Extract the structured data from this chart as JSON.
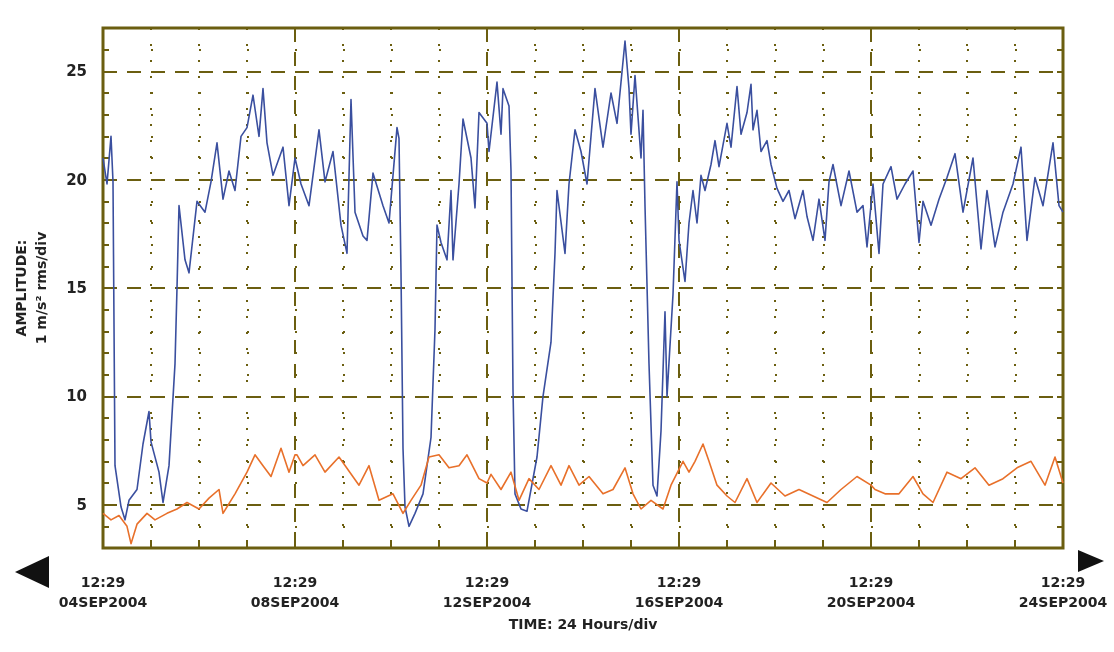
{
  "chart_data": {
    "type": "line",
    "xlabel": "TIME: 24 Hours/div",
    "ylabel": "AMPLITUDE:\n1 m/s² rms/div",
    "xlim": [
      "2004-09-04T12:29",
      "2004-09-24T12:29"
    ],
    "ylim": [
      3,
      27
    ],
    "xticks": [
      {
        "value": "2004-09-04T12:29",
        "label": "12:29\n04SEP2004"
      },
      {
        "value": "2004-09-05T12:29",
        "label": null
      },
      {
        "value": "2004-09-06T12:29",
        "label": null
      },
      {
        "value": "2004-09-07T12:29",
        "label": null
      },
      {
        "value": "2004-09-08T12:29",
        "label": "12:29\n08SEP2004"
      },
      {
        "value": "2004-09-09T12:29",
        "label": null
      },
      {
        "value": "2004-09-10T12:29",
        "label": null
      },
      {
        "value": "2004-09-11T12:29",
        "label": null
      },
      {
        "value": "2004-09-12T12:29",
        "label": "12:29\n12SEP2004"
      },
      {
        "value": "2004-09-13T12:29",
        "label": null
      },
      {
        "value": "2004-09-14T12:29",
        "label": null
      },
      {
        "value": "2004-09-15T12:29",
        "label": null
      },
      {
        "value": "2004-09-16T12:29",
        "label": "12:29\n16SEP2004"
      },
      {
        "value": "2004-09-17T12:29",
        "label": null
      },
      {
        "value": "2004-09-18T12:29",
        "label": null
      },
      {
        "value": "2004-09-19T12:29",
        "label": null
      },
      {
        "value": "2004-09-20T12:29",
        "label": "12:29\n20SEP2004"
      },
      {
        "value": "2004-09-21T12:29",
        "label": null
      },
      {
        "value": "2004-09-22T12:29",
        "label": null
      },
      {
        "value": "2004-09-23T12:29",
        "label": null
      },
      {
        "value": "2004-09-24T12:29",
        "label": "12:29\n24SEP2004"
      }
    ],
    "yticks": [
      {
        "value": 4,
        "label": null
      },
      5,
      {
        "value": 6,
        "label": null
      },
      {
        "value": 7,
        "label": null
      },
      {
        "value": 8,
        "label": null
      },
      {
        "value": 9,
        "label": null
      },
      10,
      {
        "value": 11,
        "label": null
      },
      {
        "value": 12,
        "label": null
      },
      {
        "value": 13,
        "label": null
      },
      {
        "value": 14,
        "label": null
      },
      15,
      {
        "value": 16,
        "label": null
      },
      {
        "value": 17,
        "label": null
      },
      {
        "value": 18,
        "label": null
      },
      {
        "value": 19,
        "label": null
      },
      20,
      {
        "value": 21,
        "label": null
      },
      {
        "value": 22,
        "label": null
      },
      {
        "value": 23,
        "label": null
      },
      {
        "value": 24,
        "label": null
      },
      25,
      {
        "value": 26,
        "label": null
      }
    ],
    "grid": true,
    "marker": "none",
    "line_style": "solid",
    "series": [
      {
        "color": "#3a4f9f",
        "x": [
          "2004-09-04T12:29",
          "2004-09-04T14:29",
          "2004-09-04T16:29",
          "2004-09-04T17:29",
          "2004-09-04T18:29",
          "2004-09-04T21:29",
          "2004-09-04T23:29",
          "2004-09-05T01:29",
          "2004-09-05T05:29",
          "2004-09-05T08:29",
          "2004-09-05T11:29",
          "2004-09-05T12:29",
          "2004-09-05T16:29",
          "2004-09-05T18:29",
          "2004-09-05T21:29",
          "2004-09-06T00:29",
          "2004-09-06T01:29",
          "2004-09-06T02:29",
          "2004-09-06T05:29",
          "2004-09-06T07:29",
          "2004-09-06T11:29",
          "2004-09-06T15:29",
          "2004-09-06T18:29",
          "2004-09-06T21:29",
          "2004-09-07T00:29",
          "2004-09-07T03:29",
          "2004-09-07T06:29",
          "2004-09-07T09:29",
          "2004-09-07T12:29",
          "2004-09-07T15:29",
          "2004-09-07T18:29",
          "2004-09-07T20:29",
          "2004-09-07T22:29",
          "2004-09-08T01:29",
          "2004-09-08T06:29",
          "2004-09-08T09:29",
          "2004-09-08T12:29",
          "2004-09-08T15:29",
          "2004-09-08T19:29",
          "2004-09-09T00:29",
          "2004-09-09T03:29",
          "2004-09-09T07:29",
          "2004-09-09T11:29",
          "2004-09-09T14:29",
          "2004-09-09T16:29",
          "2004-09-09T18:29",
          "2004-09-09T22:29",
          "2004-09-10T00:29",
          "2004-09-10T03:29",
          "2004-09-10T08:29",
          "2004-09-10T11:29",
          "2004-09-10T13:29",
          "2004-09-10T15:29",
          "2004-09-10T16:29",
          "2004-09-10T17:29",
          "2004-09-10T18:29",
          "2004-09-10T19:29",
          "2004-09-10T21:29",
          "2004-09-11T00:29",
          "2004-09-11T04:29",
          "2004-09-11T08:29",
          "2004-09-11T10:29",
          "2004-09-11T11:29",
          "2004-09-11T13:29",
          "2004-09-11T16:29",
          "2004-09-11T18:29",
          "2004-09-11T19:29",
          "2004-09-11T22:29",
          "2004-09-12T00:29",
          "2004-09-12T04:29",
          "2004-09-12T06:29",
          "2004-09-12T08:29",
          "2004-09-12T12:29",
          "2004-09-12T13:29",
          "2004-09-12T17:29",
          "2004-09-12T19:29",
          "2004-09-12T20:29",
          "2004-09-12T23:29",
          "2004-09-13T00:29",
          "2004-09-13T01:29",
          "2004-09-13T02:29",
          "2004-09-13T05:29",
          "2004-09-13T08:29",
          "2004-09-13T13:29",
          "2004-09-13T16:29",
          "2004-09-13T20:29",
          "2004-09-13T22:29",
          "2004-09-13T23:29",
          "2004-09-14T03:29",
          "2004-09-14T05:29",
          "2004-09-14T08:29",
          "2004-09-14T11:29",
          "2004-09-14T14:29",
          "2004-09-14T18:29",
          "2004-09-14T22:29",
          "2004-09-15T02:29",
          "2004-09-15T05:29",
          "2004-09-15T09:29",
          "2004-09-15T11:29",
          "2004-09-15T12:29",
          "2004-09-15T14:29",
          "2004-09-15T17:29",
          "2004-09-15T18:29",
          "2004-09-15T19:29",
          "2004-09-15T21:29",
          "2004-09-15T23:29",
          "2004-09-16T01:29",
          "2004-09-16T03:29",
          "2004-09-16T05:29",
          "2004-09-16T06:29",
          "2004-09-16T09:29",
          "2004-09-16T11:29",
          "2004-09-16T12:29",
          "2004-09-16T15:29",
          "2004-09-16T17:29",
          "2004-09-16T19:29",
          "2004-09-16T21:29",
          "2004-09-16T23:29",
          "2004-09-17T01:29",
          "2004-09-17T04:29",
          "2004-09-17T06:29",
          "2004-09-17T08:29",
          "2004-09-17T12:29",
          "2004-09-17T14:29",
          "2004-09-17T17:29",
          "2004-09-17T19:29",
          "2004-09-17T22:29",
          "2004-09-18T00:29",
          "2004-09-18T01:29",
          "2004-09-18T03:29",
          "2004-09-18T05:29",
          "2004-09-18T08:29",
          "2004-09-18T10:29",
          "2004-09-18T13:29",
          "2004-09-18T16:29",
          "2004-09-18T19:29",
          "2004-09-18T22:29",
          "2004-09-19T02:29",
          "2004-09-19T04:29",
          "2004-09-19T07:29",
          "2004-09-19T10:29",
          "2004-09-19T13:29",
          "2004-09-19T15:29",
          "2004-09-19T17:29",
          "2004-09-19T21:29",
          "2004-09-20T01:29",
          "2004-09-20T05:29",
          "2004-09-20T08:29",
          "2004-09-20T10:29",
          "2004-09-20T13:29",
          "2004-09-20T16:29",
          "2004-09-20T18:29",
          "2004-09-20T22:29",
          "2004-09-21T01:29",
          "2004-09-21T05:29",
          "2004-09-21T09:29",
          "2004-09-21T12:29",
          "2004-09-21T14:29",
          "2004-09-21T18:29",
          "2004-09-21T22:29",
          "2004-09-22T02:29",
          "2004-09-22T06:29",
          "2004-09-22T10:29",
          "2004-09-22T15:29",
          "2004-09-22T19:29",
          "2004-09-22T22:29",
          "2004-09-23T02:29",
          "2004-09-23T06:29",
          "2004-09-23T11:29",
          "2004-09-23T15:29",
          "2004-09-23T18:29",
          "2004-09-23T22:29",
          "2004-09-24T02:29",
          "2004-09-24T07:29",
          "2004-09-24T10:29",
          "2004-09-24T12:29"
        ],
        "values": [
          21.0,
          19.8,
          22.0,
          19.9,
          6.8,
          4.9,
          4.3,
          5.2,
          5.7,
          7.8,
          9.3,
          7.9,
          6.5,
          5.1,
          6.8,
          11.5,
          15.0,
          18.8,
          16.3,
          15.7,
          19.0,
          18.5,
          19.9,
          21.7,
          19.1,
          20.4,
          19.5,
          22.0,
          22.4,
          23.9,
          22.0,
          24.2,
          21.7,
          20.2,
          21.5,
          18.8,
          21.0,
          19.8,
          18.8,
          22.3,
          19.9,
          21.3,
          17.9,
          16.6,
          23.7,
          18.5,
          17.4,
          17.2,
          20.3,
          18.8,
          18.0,
          20.2,
          22.4,
          21.9,
          15.7,
          7.6,
          4.9,
          4.0,
          4.6,
          5.5,
          8.1,
          13.1,
          17.9,
          17.1,
          16.3,
          19.5,
          16.3,
          19.8,
          22.8,
          21.0,
          18.7,
          23.1,
          22.6,
          21.3,
          24.5,
          22.1,
          24.2,
          23.4,
          20.4,
          10.3,
          5.5,
          4.8,
          4.7,
          7.2,
          10.0,
          12.5,
          16.6,
          19.5,
          16.6,
          19.8,
          22.3,
          21.3,
          19.8,
          24.2,
          21.5,
          24.0,
          22.6,
          26.4,
          24.2,
          22.1,
          24.8,
          21.0,
          23.2,
          18.8,
          11.5,
          5.9,
          5.4,
          8.4,
          13.9,
          10.0,
          14.7,
          19.9,
          17.2,
          15.3,
          18.0,
          19.5,
          18.0,
          20.2,
          19.5,
          20.7,
          21.8,
          20.6,
          22.6,
          21.5,
          24.3,
          22.1,
          23.1,
          24.4,
          22.3,
          23.2,
          21.3,
          21.8,
          20.7,
          19.6,
          19.0,
          19.5,
          18.2,
          19.5,
          18.3,
          17.2,
          19.1,
          17.2,
          19.9,
          20.7,
          18.8,
          20.4,
          18.5,
          18.8,
          16.9,
          19.8,
          16.6,
          19.8,
          20.6,
          19.1,
          19.8,
          20.4,
          17.1,
          19.0,
          17.9,
          19.1,
          20.1,
          21.2,
          18.5,
          21.0,
          16.8,
          19.5,
          16.9,
          18.5,
          19.8,
          21.5,
          17.2,
          20.1,
          18.8,
          21.7,
          18.8,
          18.5
        ]
      },
      {
        "color": "#e8702a",
        "x": [
          "2004-09-04T12:29",
          "2004-09-04T16:29",
          "2004-09-04T20:29",
          "2004-09-05T00:29",
          "2004-09-05T02:29",
          "2004-09-05T05:29",
          "2004-09-05T10:29",
          "2004-09-05T14:29",
          "2004-09-05T20:29",
          "2004-09-06T01:29",
          "2004-09-06T06:29",
          "2004-09-06T12:29",
          "2004-09-06T17:29",
          "2004-09-06T22:29",
          "2004-09-07T00:29",
          "2004-09-07T06:29",
          "2004-09-07T12:29",
          "2004-09-07T16:29",
          "2004-09-07T20:29",
          "2004-09-08T00:29",
          "2004-09-08T05:29",
          "2004-09-08T09:29",
          "2004-09-08T12:29",
          "2004-09-08T13:29",
          "2004-09-08T16:29",
          "2004-09-08T22:29",
          "2004-09-09T03:29",
          "2004-09-09T10:29",
          "2004-09-09T20:29",
          "2004-09-10T01:29",
          "2004-09-10T06:29",
          "2004-09-10T13:29",
          "2004-09-10T18:29",
          "2004-09-10T22:29",
          "2004-09-11T03:29",
          "2004-09-11T07:29",
          "2004-09-11T12:29",
          "2004-09-11T17:29",
          "2004-09-11T22:29",
          "2004-09-12T02:29",
          "2004-09-12T08:29",
          "2004-09-12T12:29",
          "2004-09-12T14:29",
          "2004-09-12T19:29",
          "2004-09-13T00:29",
          "2004-09-13T04:29",
          "2004-09-13T09:29",
          "2004-09-13T14:29",
          "2004-09-13T20:29",
          "2004-09-14T01:29",
          "2004-09-14T05:29",
          "2004-09-14T10:29",
          "2004-09-14T15:29",
          "2004-09-14T22:29",
          "2004-09-15T03:29",
          "2004-09-15T09:29",
          "2004-09-15T13:29",
          "2004-09-15T17:29",
          "2004-09-15T22:29",
          "2004-09-16T04:29",
          "2004-09-16T08:29",
          "2004-09-16T14:29",
          "2004-09-16T17:29",
          "2004-09-16T20:29",
          "2004-09-17T00:29",
          "2004-09-17T03:29",
          "2004-09-17T07:29",
          "2004-09-17T12:29",
          "2004-09-17T16:29",
          "2004-09-17T22:29",
          "2004-09-18T03:29",
          "2004-09-18T10:29",
          "2004-09-18T17:29",
          "2004-09-19T00:29",
          "2004-09-19T07:29",
          "2004-09-19T14:29",
          "2004-09-19T21:29",
          "2004-09-20T05:29",
          "2004-09-20T12:29",
          "2004-09-20T14:29",
          "2004-09-20T19:29",
          "2004-09-21T02:29",
          "2004-09-21T09:29",
          "2004-09-21T14:29",
          "2004-09-21T19:29",
          "2004-09-22T02:29",
          "2004-09-22T09:29",
          "2004-09-22T16:29",
          "2004-09-22T23:29",
          "2004-09-23T06:29",
          "2004-09-23T13:29",
          "2004-09-23T20:29",
          "2004-09-24T03:29",
          "2004-09-24T08:29",
          "2004-09-24T12:29"
        ],
        "values": [
          4.6,
          4.3,
          4.5,
          4.0,
          3.2,
          4.1,
          4.6,
          4.3,
          4.6,
          4.8,
          5.1,
          4.8,
          5.3,
          5.7,
          4.6,
          5.5,
          6.5,
          7.3,
          6.8,
          6.3,
          7.6,
          6.5,
          7.3,
          7.3,
          6.8,
          7.3,
          6.5,
          7.2,
          5.9,
          6.8,
          5.2,
          5.5,
          4.6,
          5.2,
          5.9,
          7.2,
          7.3,
          6.7,
          6.8,
          7.3,
          6.2,
          6.0,
          6.4,
          5.7,
          6.5,
          5.2,
          6.2,
          5.7,
          6.8,
          5.9,
          6.8,
          5.9,
          6.3,
          5.5,
          5.7,
          6.7,
          5.5,
          4.8,
          5.2,
          4.8,
          5.9,
          7.0,
          6.5,
          7.0,
          7.8,
          7.0,
          5.9,
          5.4,
          5.1,
          6.2,
          5.1,
          6.0,
          5.4,
          5.7,
          5.4,
          5.1,
          5.7,
          6.3,
          5.9,
          5.7,
          5.5,
          5.5,
          6.3,
          5.5,
          5.1,
          6.5,
          6.2,
          6.7,
          5.9,
          6.2,
          6.7,
          7.0,
          5.9,
          7.2,
          6.0
        ]
      }
    ]
  }
}
